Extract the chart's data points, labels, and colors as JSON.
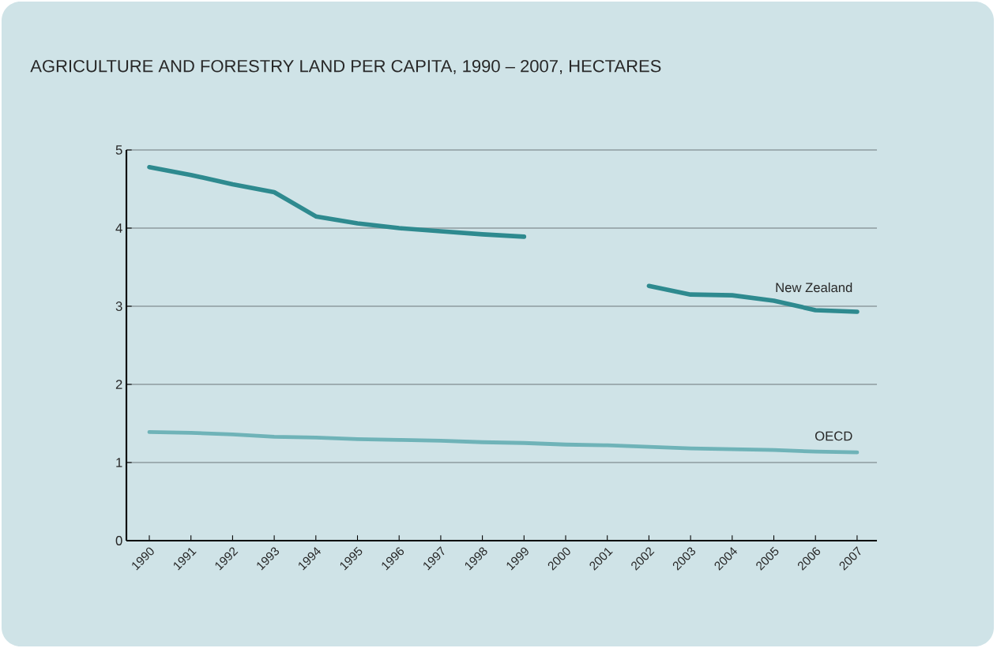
{
  "chart_data": {
    "type": "line",
    "title": "AGRICULTURE AND FORESTRY LAND PER CAPITA, 1990 – 2007, HECTARES",
    "categories": [
      "1990",
      "1991",
      "1992",
      "1993",
      "1994",
      "1995",
      "1996",
      "1997",
      "1998",
      "1999",
      "2000",
      "2001",
      "2002",
      "2003",
      "2004",
      "2005",
      "2006",
      "2007"
    ],
    "series": [
      {
        "name": "New Zealand",
        "color": "#2e8a8f",
        "values": [
          4.78,
          4.68,
          4.56,
          4.46,
          4.15,
          4.06,
          4.0,
          3.96,
          3.92,
          3.89,
          null,
          null,
          3.26,
          3.15,
          3.14,
          3.07,
          2.95,
          2.93
        ]
      },
      {
        "name": "OECD",
        "color": "#6fb3b8",
        "values": [
          1.39,
          1.38,
          1.36,
          1.33,
          1.32,
          1.3,
          1.29,
          1.28,
          1.26,
          1.25,
          1.23,
          1.22,
          1.2,
          1.18,
          1.17,
          1.16,
          1.14,
          1.13
        ]
      }
    ],
    "ylim": [
      0,
      5
    ],
    "yticks": [
      0,
      1,
      2,
      3,
      4,
      5
    ],
    "grid": "y",
    "legend": false,
    "marker": "none",
    "line_style": "solid"
  }
}
